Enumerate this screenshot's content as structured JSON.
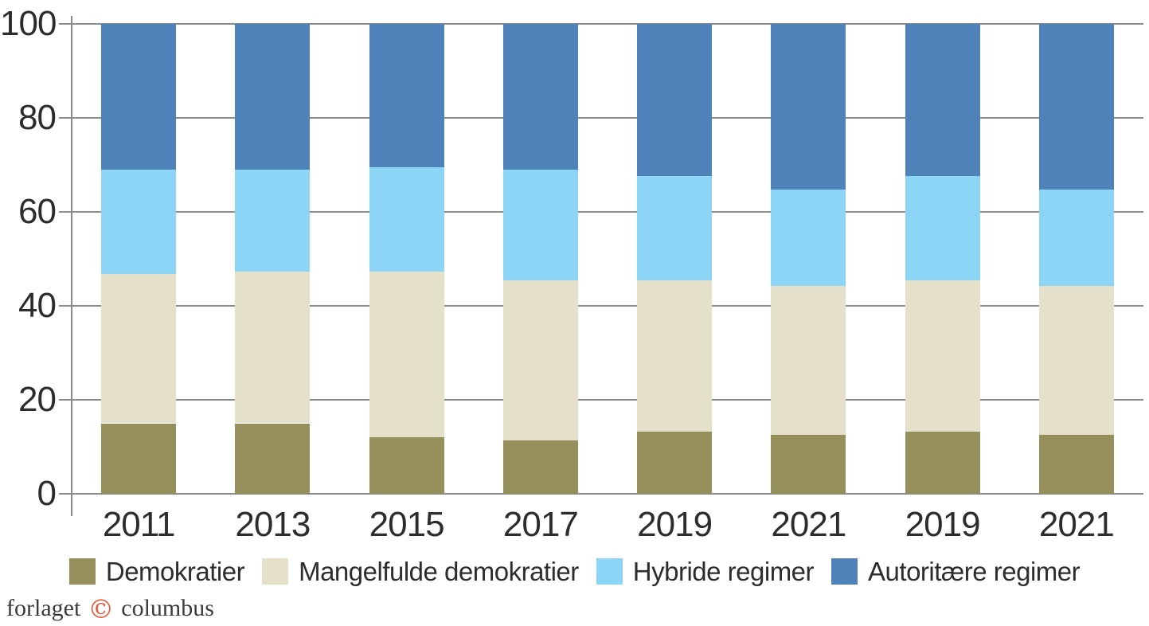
{
  "chart_data": {
    "type": "bar",
    "stacked": true,
    "title": "",
    "xlabel": "",
    "ylabel": "",
    "categories": [
      "2011",
      "2013",
      "2015",
      "2017",
      "2019",
      "2021",
      "2019",
      "2021"
    ],
    "series": [
      {
        "name": "Demokratier",
        "color": "#958f5b",
        "values": [
          15.0,
          15.0,
          12.0,
          11.4,
          13.2,
          12.6,
          13.2,
          12.6
        ]
      },
      {
        "name": "Mangelfulde demokratier",
        "color": "#e4e0ca",
        "values": [
          31.7,
          32.3,
          35.3,
          34.1,
          32.3,
          31.7,
          32.3,
          31.7
        ]
      },
      {
        "name": "Hybride regimer",
        "color": "#8dd5f6",
        "values": [
          22.2,
          21.6,
          22.2,
          23.4,
          22.2,
          20.4,
          22.2,
          20.4
        ]
      },
      {
        "name": "Autoritære regimer",
        "color": "#4e82b9",
        "values": [
          31.1,
          31.1,
          30.5,
          31.1,
          32.3,
          35.3,
          32.3,
          35.3
        ]
      }
    ],
    "ylim": [
      0,
      100
    ],
    "yticks": [
      0,
      20,
      40,
      60,
      80,
      100
    ],
    "grid": true,
    "legend_position": "bottom"
  },
  "footer": {
    "publisher_pre": "forlaget",
    "publisher_symbol": "©",
    "publisher_post": "columbus"
  },
  "colors": {
    "gridline": "#8b8b8b",
    "axis_text": "#2d2d2d",
    "copyright_accent": "#e8593a",
    "background": "#ffffff"
  }
}
